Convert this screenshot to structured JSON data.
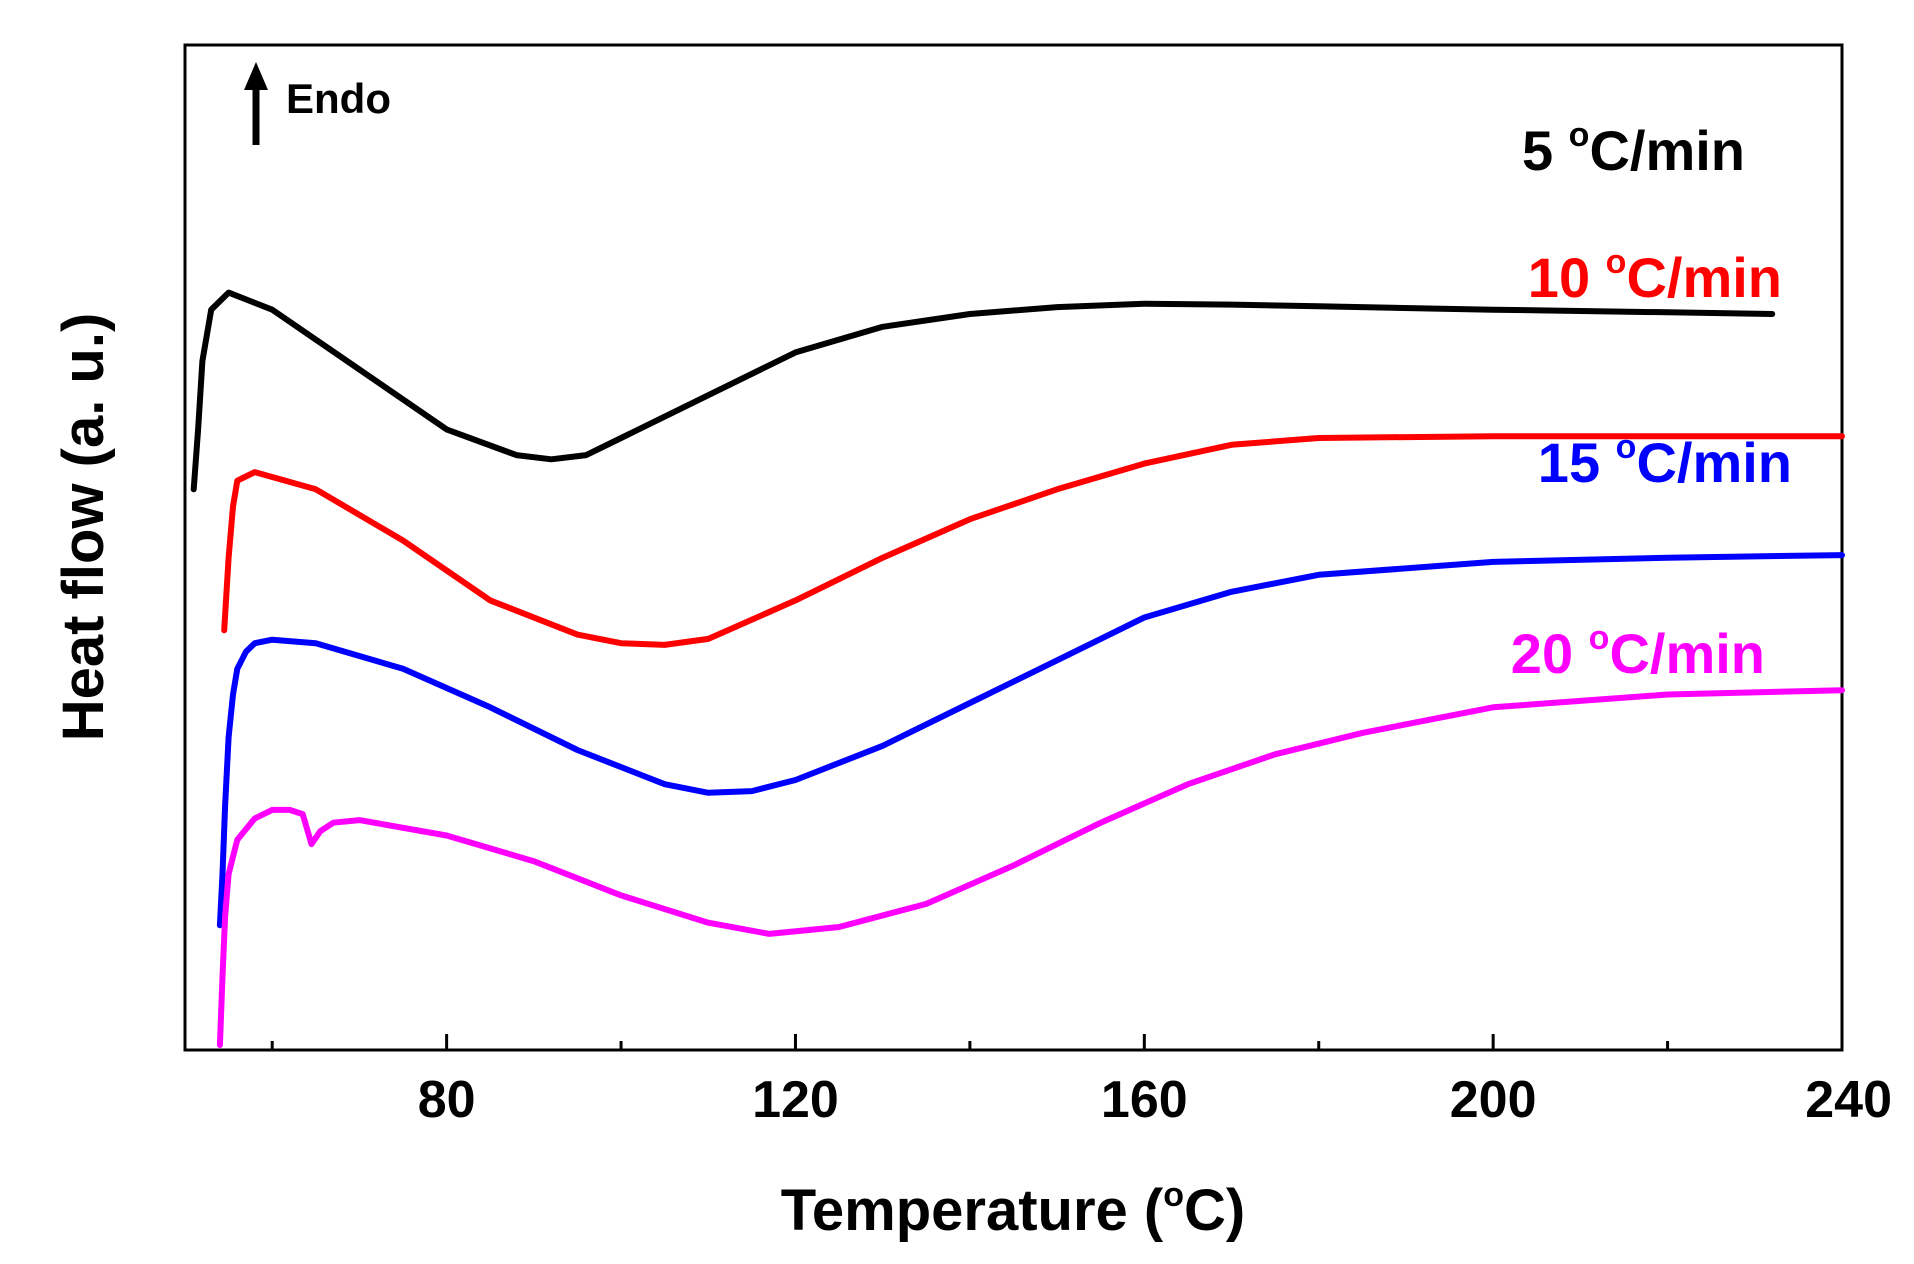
{
  "chart_data": {
    "type": "line",
    "title": "",
    "xlabel": "Temperature (°C)",
    "xlabel_main": "Temperature (",
    "xlabel_unit": "o",
    "xlabel_tail": "C)",
    "ylabel": "Heat flow (a. u.)",
    "xlim": [
      50,
      240
    ],
    "ylim": [
      0,
      100
    ],
    "x_ticks": [
      80,
      120,
      160,
      200,
      240
    ],
    "x_minor_ticks": [
      60,
      100,
      140,
      180,
      220
    ],
    "y_ticks": [],
    "grid": false,
    "annotation": {
      "text": "Endo",
      "arrow": "up"
    },
    "series": [
      {
        "name": "5 °C/min",
        "label_number": "5 ",
        "label_unit": "C/min",
        "color": "#000000",
        "x": [
          51,
          51.5,
          52,
          53,
          55,
          60,
          70,
          80,
          88,
          92,
          96,
          100,
          110,
          120,
          130,
          140,
          150,
          160,
          170,
          180,
          200,
          220,
          232
        ],
        "y": [
          65,
          72,
          80,
          86,
          88,
          86,
          79,
          72,
          69,
          68.5,
          69,
          71,
          76,
          81,
          84,
          85.5,
          86.3,
          86.7,
          86.6,
          86.4,
          86,
          85.7,
          85.5
        ]
      },
      {
        "name": "10 °C/min",
        "label_number": "10 ",
        "label_unit": "C/min",
        "color": "#ff0000",
        "x": [
          54.5,
          55,
          55.5,
          56,
          58,
          65,
          75,
          85,
          95,
          100,
          105,
          110,
          120,
          130,
          140,
          150,
          160,
          170,
          180,
          200,
          220,
          240
        ],
        "y": [
          48.5,
          57,
          63,
          66,
          67,
          65,
          59,
          52,
          48,
          47,
          46.8,
          47.5,
          52,
          57,
          61.5,
          65,
          68,
          70.2,
          71,
          71.2,
          71.2,
          71.2
        ]
      },
      {
        "name": "15 °C/min",
        "label_number": "15 ",
        "label_unit": "C/min",
        "color": "#0000ff",
        "x": [
          54,
          54.3,
          54.6,
          55,
          55.5,
          56,
          57,
          58,
          60,
          65,
          75,
          85,
          95,
          105,
          110,
          115,
          120,
          130,
          140,
          150,
          160,
          170,
          180,
          200,
          220,
          240
        ],
        "y": [
          14,
          20,
          28,
          36,
          41,
          44,
          46,
          47,
          47.4,
          47,
          44,
          39.5,
          34.5,
          30.5,
          29.5,
          29.7,
          31,
          35,
          40,
          45,
          50,
          53,
          55,
          56.5,
          57,
          57.3
        ]
      },
      {
        "name": "20 °C/min",
        "label_number": "20 ",
        "label_unit": "C/min",
        "color": "#ff00ff",
        "x": [
          54,
          54.3,
          54.6,
          55,
          56,
          58,
          60,
          62,
          63.5,
          64.5,
          65.5,
          67,
          70,
          80,
          90,
          100,
          110,
          117,
          125,
          135,
          145,
          155,
          165,
          175,
          185,
          200,
          220,
          240
        ],
        "y": [
          0,
          8,
          15,
          20,
          24,
          26.5,
          27.5,
          27.5,
          27,
          23.5,
          25,
          26,
          26.3,
          24.5,
          21.5,
          17.5,
          14.3,
          13,
          13.8,
          16.5,
          21,
          26,
          30.5,
          34,
          36.5,
          39.5,
          41,
          41.5
        ]
      }
    ]
  }
}
